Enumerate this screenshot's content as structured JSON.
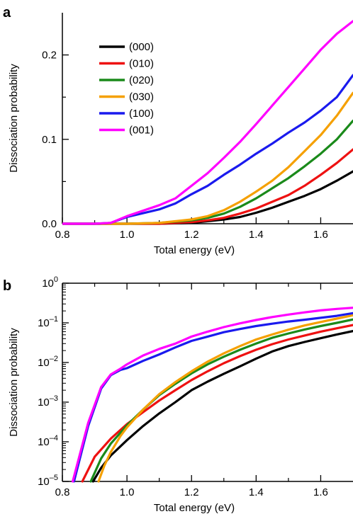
{
  "chart_data": [
    {
      "panel_label": "a",
      "type": "line",
      "xlabel": "Total energy (eV)",
      "ylabel": "Dissociation probability",
      "xlim": [
        0.8,
        1.7
      ],
      "ylim": [
        0.0,
        0.25
      ],
      "yscale": "linear",
      "xticks": [
        0.8,
        1.0,
        1.2,
        1.4,
        1.6
      ],
      "xtick_labels": [
        "0.8",
        "1.0",
        "1.2",
        "1.4",
        "1.6"
      ],
      "yticks": [
        0.0,
        0.1,
        0.2
      ],
      "ytick_labels": [
        "0.0",
        "0.1",
        "0.2"
      ],
      "legend_position": "top-left",
      "series": [
        {
          "name": "(000)",
          "color": "#000000",
          "x": [
            0.8,
            0.9,
            1.0,
            1.1,
            1.2,
            1.25,
            1.3,
            1.35,
            1.4,
            1.45,
            1.5,
            1.55,
            1.6,
            1.65,
            1.7
          ],
          "y": [
            0,
            0,
            0,
            0,
            0.001,
            0.003,
            0.005,
            0.008,
            0.013,
            0.019,
            0.026,
            0.033,
            0.041,
            0.051,
            0.062
          ]
        },
        {
          "name": "(010)",
          "color": "#ee1111",
          "x": [
            0.8,
            0.9,
            1.0,
            1.1,
            1.2,
            1.25,
            1.3,
            1.35,
            1.4,
            1.45,
            1.5,
            1.55,
            1.6,
            1.65,
            1.7
          ],
          "y": [
            0,
            0,
            0,
            0,
            0.002,
            0.004,
            0.007,
            0.012,
            0.018,
            0.026,
            0.034,
            0.045,
            0.058,
            0.072,
            0.088
          ]
        },
        {
          "name": "(020)",
          "color": "#1a8a1a",
          "x": [
            0.8,
            0.9,
            1.0,
            1.1,
            1.2,
            1.25,
            1.3,
            1.35,
            1.4,
            1.45,
            1.5,
            1.55,
            1.6,
            1.65,
            1.7
          ],
          "y": [
            0,
            0,
            0,
            0.001,
            0.004,
            0.007,
            0.012,
            0.02,
            0.03,
            0.042,
            0.054,
            0.068,
            0.083,
            0.1,
            0.122
          ]
        },
        {
          "name": "(030)",
          "color": "#f5a000",
          "x": [
            0.8,
            0.9,
            1.0,
            1.1,
            1.2,
            1.25,
            1.3,
            1.35,
            1.4,
            1.45,
            1.5,
            1.55,
            1.6,
            1.65,
            1.7
          ],
          "y": [
            0,
            0,
            0,
            0.001,
            0.005,
            0.009,
            0.016,
            0.026,
            0.038,
            0.051,
            0.067,
            0.086,
            0.105,
            0.128,
            0.155
          ]
        },
        {
          "name": "(100)",
          "color": "#1a1aee",
          "x": [
            0.8,
            0.9,
            0.95,
            1.0,
            1.1,
            1.15,
            1.2,
            1.25,
            1.3,
            1.35,
            1.4,
            1.45,
            1.5,
            1.55,
            1.6,
            1.65,
            1.7
          ],
          "y": [
            0,
            0,
            0.001,
            0.008,
            0.017,
            0.024,
            0.035,
            0.045,
            0.058,
            0.07,
            0.083,
            0.095,
            0.108,
            0.12,
            0.134,
            0.15,
            0.176
          ]
        },
        {
          "name": "(001)",
          "color": "#ff00ff",
          "x": [
            0.8,
            0.9,
            0.95,
            1.0,
            1.1,
            1.15,
            1.2,
            1.25,
            1.3,
            1.35,
            1.4,
            1.45,
            1.5,
            1.55,
            1.6,
            1.65,
            1.7
          ],
          "y": [
            0,
            0,
            0.001,
            0.009,
            0.022,
            0.03,
            0.045,
            0.06,
            0.078,
            0.097,
            0.118,
            0.14,
            0.162,
            0.184,
            0.206,
            0.225,
            0.24
          ]
        }
      ]
    },
    {
      "panel_label": "b",
      "type": "line",
      "xlabel": "Total energy (eV)",
      "ylabel": "Dissociation probability",
      "xlim": [
        0.8,
        1.7
      ],
      "ylim": [
        1e-05,
        1
      ],
      "yscale": "log",
      "xticks": [
        0.8,
        1.0,
        1.2,
        1.4,
        1.6
      ],
      "xtick_labels": [
        "0.8",
        "1.0",
        "1.2",
        "1.4",
        "1.6"
      ],
      "ytick_exponents": [
        0,
        -1,
        -2,
        -3,
        -4,
        -5
      ],
      "ytick_base": "10",
      "ytick_exponent_labels": [
        "0",
        "–1",
        "–2",
        "–3",
        "–4",
        "–5"
      ],
      "series": [
        {
          "name": "(000)",
          "color": "#000000",
          "x": [
            0.895,
            0.92,
            0.95,
            1.0,
            1.05,
            1.1,
            1.15,
            1.2,
            1.25,
            1.3,
            1.35,
            1.4,
            1.45,
            1.5,
            1.55,
            1.6,
            1.65,
            1.7
          ],
          "y": [
            1e-05,
            2.2e-05,
            4.5e-05,
            0.00011,
            0.00025,
            0.00052,
            0.001,
            0.002,
            0.0033,
            0.0052,
            0.008,
            0.0125,
            0.019,
            0.026,
            0.033,
            0.041,
            0.051,
            0.062
          ]
        },
        {
          "name": "(010)",
          "color": "#ee1111",
          "x": [
            0.862,
            0.9,
            0.95,
            1.0,
            1.05,
            1.1,
            1.15,
            1.2,
            1.25,
            1.3,
            1.35,
            1.4,
            1.45,
            1.5,
            1.55,
            1.6,
            1.65,
            1.7
          ],
          "y": [
            1e-05,
            4.2e-05,
            0.00012,
            0.00028,
            0.00056,
            0.0011,
            0.002,
            0.0036,
            0.006,
            0.0096,
            0.0145,
            0.021,
            0.029,
            0.038,
            0.048,
            0.06,
            0.073,
            0.088
          ]
        },
        {
          "name": "(020)",
          "color": "#1a8a1a",
          "x": [
            0.888,
            0.92,
            0.95,
            1.0,
            1.05,
            1.1,
            1.15,
            1.2,
            1.25,
            1.3,
            1.35,
            1.4,
            1.45,
            1.5,
            1.55,
            1.6,
            1.65,
            1.7
          ],
          "y": [
            1e-05,
            3.8e-05,
            9e-05,
            0.00026,
            0.00065,
            0.0015,
            0.0029,
            0.0053,
            0.009,
            0.014,
            0.021,
            0.03,
            0.042,
            0.054,
            0.068,
            0.083,
            0.1,
            0.122
          ]
        },
        {
          "name": "(030)",
          "color": "#f5a000",
          "x": [
            0.912,
            0.93,
            0.95,
            0.98,
            1.0,
            1.05,
            1.1,
            1.15,
            1.2,
            1.25,
            1.3,
            1.35,
            1.4,
            1.45,
            1.5,
            1.55,
            1.6,
            1.65,
            1.7
          ],
          "y": [
            1e-05,
            2.5e-05,
            5.5e-05,
            0.00014,
            0.00023,
            0.00065,
            0.0016,
            0.0032,
            0.006,
            0.0105,
            0.017,
            0.026,
            0.038,
            0.051,
            0.067,
            0.086,
            0.105,
            0.128,
            0.155
          ]
        },
        {
          "name": "(100)",
          "color": "#1a1aee",
          "x": [
            0.836,
            0.88,
            0.92,
            0.95,
            0.98,
            1.0,
            1.05,
            1.1,
            1.15,
            1.2,
            1.25,
            1.3,
            1.35,
            1.4,
            1.45,
            1.5,
            1.55,
            1.6,
            1.65,
            1.7
          ],
          "y": [
            1e-05,
            0.00025,
            0.0022,
            0.0048,
            0.0065,
            0.0072,
            0.011,
            0.016,
            0.024,
            0.035,
            0.045,
            0.058,
            0.07,
            0.083,
            0.095,
            0.108,
            0.12,
            0.134,
            0.15,
            0.176
          ]
        },
        {
          "name": "(001)",
          "color": "#ff00ff",
          "x": [
            0.832,
            0.88,
            0.92,
            0.95,
            0.98,
            1.0,
            1.05,
            1.1,
            1.15,
            1.2,
            1.25,
            1.3,
            1.35,
            1.4,
            1.45,
            1.5,
            1.55,
            1.6,
            1.65,
            1.7
          ],
          "y": [
            1e-05,
            0.0003,
            0.0024,
            0.005,
            0.007,
            0.009,
            0.015,
            0.022,
            0.03,
            0.045,
            0.06,
            0.078,
            0.097,
            0.118,
            0.14,
            0.162,
            0.184,
            0.206,
            0.225,
            0.24
          ]
        }
      ]
    }
  ]
}
